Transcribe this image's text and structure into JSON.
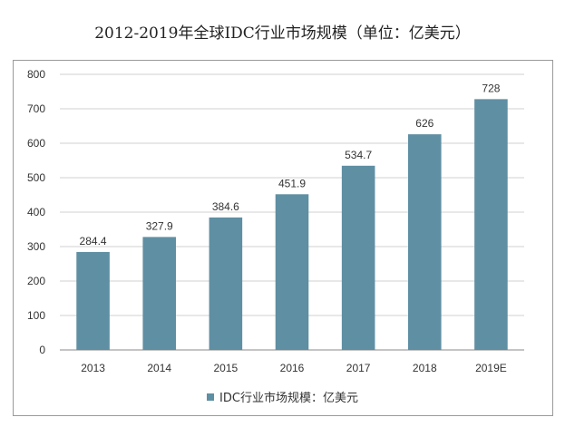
{
  "colors": {
    "bar": "#5f8fa3",
    "grid": "#d0d0d0",
    "axis": "#888888"
  },
  "chart_data": {
    "type": "bar",
    "title": "2012-2019年全球IDC行业市场规模（单位：亿美元）",
    "xlabel": "",
    "ylabel": "",
    "categories": [
      "2013",
      "2014",
      "2015",
      "2016",
      "2017",
      "2018",
      "2019E"
    ],
    "series": [
      {
        "name": "IDC行业市场规模：亿美元",
        "values": [
          284.4,
          327.9,
          384.6,
          451.9,
          534.7,
          626,
          728
        ],
        "labels": [
          "284.4",
          "327.9",
          "384.6",
          "451.9",
          "534.7",
          "626",
          "728"
        ]
      }
    ],
    "ylim": [
      0,
      800
    ],
    "yticks": [
      0,
      100,
      200,
      300,
      400,
      500,
      600,
      700,
      800
    ],
    "grid": true,
    "legend": "bottom"
  }
}
